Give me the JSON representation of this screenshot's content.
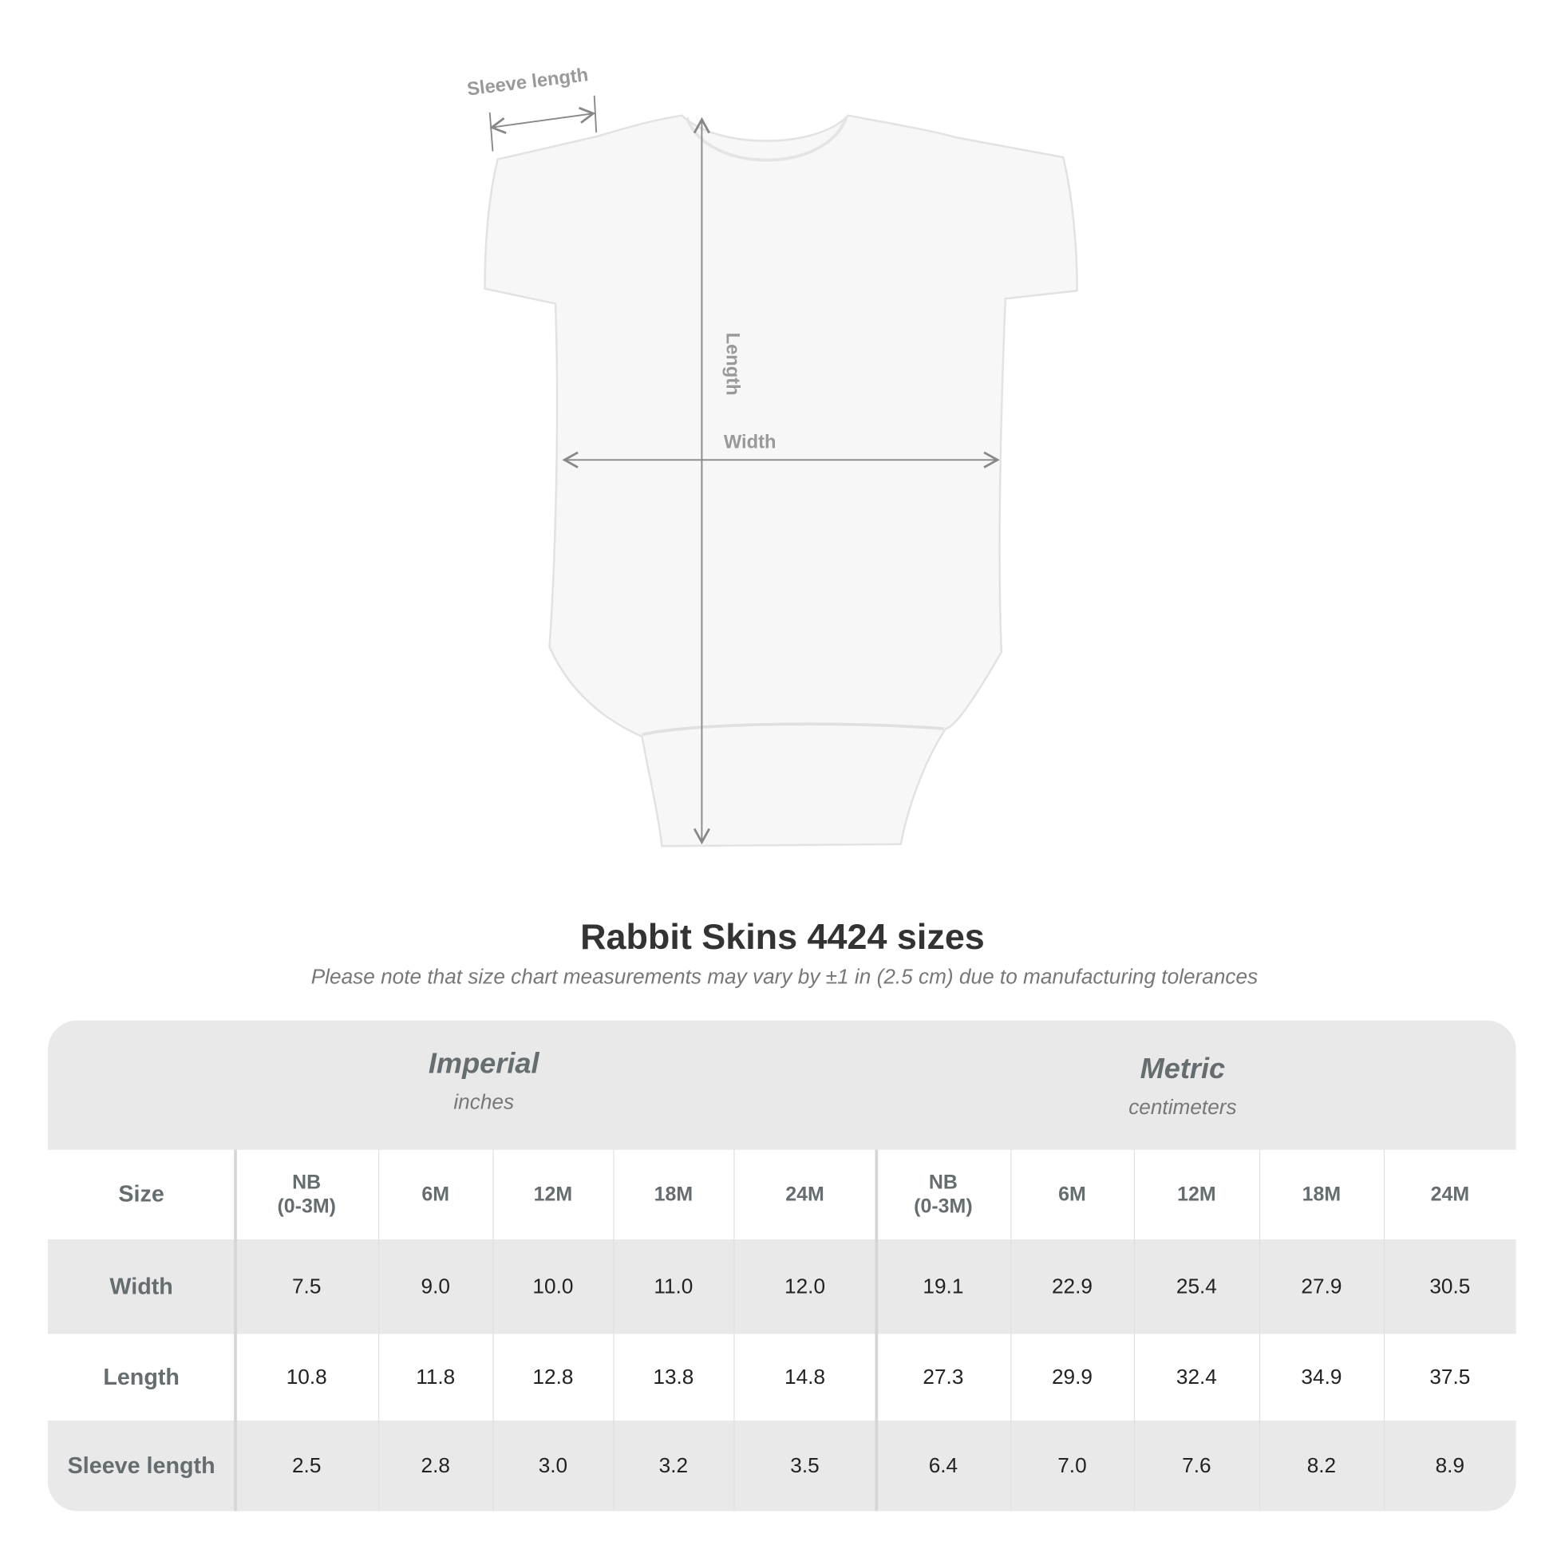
{
  "diagram": {
    "labels": {
      "sleeve": "Sleeve length",
      "length": "Length",
      "width": "Width"
    }
  },
  "title": "Rabbit Skins 4424 sizes",
  "note": "Please note that size chart measurements may vary by ±1 in (2.5 cm) due to manufacturing tolerances",
  "table": {
    "groups": [
      {
        "title": "Imperial",
        "unit": "inches"
      },
      {
        "title": "Metric",
        "unit": "centimeters"
      }
    ],
    "size_label": "Size",
    "sizes": [
      "NB\n(0-3M)",
      "6M",
      "12M",
      "18M",
      "24M",
      "NB\n(0-3M)",
      "6M",
      "12M",
      "18M",
      "24M"
    ],
    "rows": [
      {
        "label": "Width",
        "values": [
          "7.5",
          "9.0",
          "10.0",
          "11.0",
          "12.0",
          "19.1",
          "22.9",
          "25.4",
          "27.9",
          "30.5"
        ]
      },
      {
        "label": "Length",
        "values": [
          "10.8",
          "11.8",
          "12.8",
          "13.8",
          "14.8",
          "27.3",
          "29.9",
          "32.4",
          "34.9",
          "37.5"
        ]
      },
      {
        "label": "Sleeve length",
        "values": [
          "2.5",
          "2.8",
          "3.0",
          "3.2",
          "3.5",
          "6.4",
          "7.0",
          "7.6",
          "8.2",
          "8.9"
        ]
      }
    ]
  }
}
